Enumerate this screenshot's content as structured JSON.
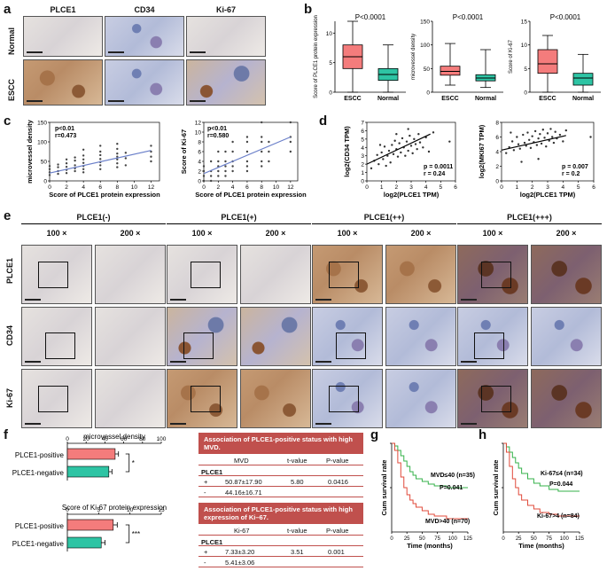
{
  "panels": {
    "a": "a",
    "b": "b",
    "c": "c",
    "d": "d",
    "e": "e",
    "f": "f",
    "g": "g",
    "h": "h"
  },
  "panel_a": {
    "columns": [
      "PLCE1",
      "CD34",
      "Ki-67"
    ],
    "rows": [
      "Normal",
      "ESCC"
    ]
  },
  "panel_e": {
    "groups": [
      "PLCE1(-)",
      "PLCE1(+)",
      "PLCE1(++)",
      "PLCE1(+++)"
    ],
    "magnifications": [
      "100 ×",
      "200 ×"
    ],
    "rows": [
      "PLCE1",
      "CD34",
      "Ki-67"
    ]
  },
  "chart_data": [
    {
      "id": "b1",
      "type": "box",
      "ylabel": "Score of PLCE1 protein expression",
      "categories": [
        "ESCC",
        "Normal"
      ],
      "annotation": "P<0.0001",
      "ylim": [
        0,
        12
      ],
      "yticks": [
        0,
        5,
        10
      ],
      "boxes": [
        {
          "name": "ESCC",
          "min": 0,
          "q1": 4,
          "median": 6,
          "q3": 8,
          "max": 12,
          "color": "#f47c7c"
        },
        {
          "name": "Normal",
          "min": 0,
          "q1": 2,
          "median": 3,
          "q3": 4,
          "max": 8,
          "color": "#2ec4a4"
        }
      ]
    },
    {
      "id": "b2",
      "type": "box",
      "ylabel": "microvessel density",
      "categories": [
        "ESCC",
        "Normal"
      ],
      "annotation": "P<0.0001",
      "ylim": [
        0,
        150
      ],
      "yticks": [
        0,
        50,
        100,
        150
      ],
      "boxes": [
        {
          "name": "ESCC",
          "min": 15,
          "q1": 36,
          "median": 44,
          "q3": 55,
          "max": 103,
          "color": "#f47c7c"
        },
        {
          "name": "Normal",
          "min": 10,
          "q1": 24,
          "median": 30,
          "q3": 37,
          "max": 90,
          "color": "#2ec4a4"
        }
      ]
    },
    {
      "id": "b3",
      "type": "box",
      "ylabel": "Score of Ki-67",
      "categories": [
        "ESCC",
        "Normal"
      ],
      "annotation": "P<0.0001",
      "ylim": [
        0,
        15
      ],
      "yticks": [
        0,
        5,
        10,
        15
      ],
      "boxes": [
        {
          "name": "ESCC",
          "min": 0,
          "q1": 4,
          "median": 6,
          "q3": 9,
          "max": 12,
          "color": "#f47c7c"
        },
        {
          "name": "Normal",
          "min": 0,
          "q1": 1.5,
          "median": 3,
          "q3": 4,
          "max": 8,
          "color": "#2ec4a4"
        }
      ]
    },
    {
      "id": "c1",
      "type": "scatter",
      "xlabel": "Score of PLCE1 protein expression",
      "ylabel": "microvessel density",
      "annotation": [
        "p<0.01",
        "r=0.473"
      ],
      "xlim": [
        0,
        13
      ],
      "ylim": [
        0,
        150
      ],
      "xticks": [
        0,
        2,
        4,
        6,
        8,
        10,
        12
      ],
      "yticks": [
        0,
        50,
        100,
        150
      ],
      "fit": {
        "x": [
          0,
          12
        ],
        "y": [
          20,
          78
        ]
      },
      "points": [
        [
          0,
          15
        ],
        [
          0,
          22
        ],
        [
          0,
          30
        ],
        [
          0,
          38
        ],
        [
          1,
          18
        ],
        [
          1,
          25
        ],
        [
          1,
          35
        ],
        [
          1,
          42
        ],
        [
          2,
          20
        ],
        [
          2,
          28
        ],
        [
          2,
          36
        ],
        [
          2,
          45
        ],
        [
          2,
          55
        ],
        [
          3,
          25
        ],
        [
          3,
          32
        ],
        [
          3,
          40
        ],
        [
          3,
          52
        ],
        [
          3,
          60
        ],
        [
          4,
          22
        ],
        [
          4,
          30
        ],
        [
          4,
          38
        ],
        [
          4,
          46
        ],
        [
          4,
          55
        ],
        [
          4,
          65
        ],
        [
          4,
          80
        ],
        [
          6,
          30
        ],
        [
          6,
          40
        ],
        [
          6,
          48
        ],
        [
          6,
          56
        ],
        [
          6,
          66
        ],
        [
          6,
          75
        ],
        [
          6,
          90
        ],
        [
          8,
          35
        ],
        [
          8,
          45
        ],
        [
          8,
          55
        ],
        [
          8,
          62
        ],
        [
          8,
          70
        ],
        [
          8,
          82
        ],
        [
          8,
          95
        ],
        [
          9,
          40
        ],
        [
          9,
          58
        ],
        [
          9,
          72
        ],
        [
          12,
          50
        ],
        [
          12,
          62
        ],
        [
          12,
          75
        ],
        [
          12,
          90
        ]
      ]
    },
    {
      "id": "c2",
      "type": "scatter",
      "xlabel": "Score of PLCE1 protein expression",
      "ylabel": "Score of Ki-67",
      "annotation": [
        "p<0.01",
        "r=0.580"
      ],
      "xlim": [
        0,
        13
      ],
      "ylim": [
        0,
        12
      ],
      "xticks": [
        0,
        2,
        4,
        6,
        8,
        10,
        12
      ],
      "yticks": [
        0,
        2,
        4,
        6,
        8,
        10,
        12
      ],
      "fit": {
        "x": [
          0,
          12
        ],
        "y": [
          1.5,
          9
        ]
      },
      "points": [
        [
          0,
          0
        ],
        [
          0,
          1
        ],
        [
          0,
          2
        ],
        [
          0,
          3
        ],
        [
          1,
          0
        ],
        [
          1,
          1
        ],
        [
          1,
          2
        ],
        [
          1,
          4
        ],
        [
          2,
          1
        ],
        [
          2,
          2
        ],
        [
          2,
          3
        ],
        [
          2,
          4
        ],
        [
          2,
          6
        ],
        [
          3,
          1
        ],
        [
          3,
          2
        ],
        [
          3,
          3
        ],
        [
          3,
          4
        ],
        [
          3,
          6
        ],
        [
          4,
          2
        ],
        [
          4,
          3
        ],
        [
          4,
          4
        ],
        [
          4,
          6
        ],
        [
          4,
          8
        ],
        [
          6,
          2
        ],
        [
          6,
          3
        ],
        [
          6,
          4
        ],
        [
          6,
          6
        ],
        [
          6,
          8
        ],
        [
          6,
          9
        ],
        [
          8,
          3
        ],
        [
          8,
          4
        ],
        [
          8,
          6
        ],
        [
          8,
          8
        ],
        [
          8,
          9
        ],
        [
          8,
          12
        ],
        [
          9,
          4
        ],
        [
          9,
          6
        ],
        [
          9,
          8
        ],
        [
          12,
          6
        ],
        [
          12,
          8
        ],
        [
          12,
          9
        ],
        [
          12,
          12
        ]
      ]
    },
    {
      "id": "d1",
      "type": "scatter",
      "xlabel": "log2(PLCE1 TPM)",
      "ylabel": "log2(CD34 TPM)",
      "annotation": [
        "p = 0.0011",
        "r = 0.24"
      ],
      "xlim": [
        0,
        6
      ],
      "ylim": [
        0,
        7
      ],
      "xticks": [
        0,
        1,
        2,
        3,
        4,
        5,
        6
      ],
      "yticks": [
        0,
        1,
        2,
        3,
        4,
        5,
        6,
        7
      ],
      "fit": {
        "x": [
          0,
          4.3
        ],
        "y": [
          2,
          5.6
        ]
      },
      "points": [
        [
          0.3,
          1.5
        ],
        [
          0.5,
          2.4
        ],
        [
          0.7,
          3.1
        ],
        [
          0.8,
          2.0
        ],
        [
          1.0,
          3.4
        ],
        [
          1.1,
          2.6
        ],
        [
          1.2,
          4.1
        ],
        [
          1.4,
          3.0
        ],
        [
          1.5,
          3.6
        ],
        [
          1.6,
          2.2
        ],
        [
          1.7,
          4.3
        ],
        [
          1.8,
          3.2
        ],
        [
          1.9,
          4.8
        ],
        [
          2.0,
          3.8
        ],
        [
          2.1,
          2.9
        ],
        [
          2.2,
          4.5
        ],
        [
          2.3,
          3.4
        ],
        [
          2.4,
          5.1
        ],
        [
          2.5,
          4.0
        ],
        [
          2.6,
          3.0
        ],
        [
          2.7,
          4.7
        ],
        [
          2.8,
          3.6
        ],
        [
          2.9,
          5.4
        ],
        [
          3.0,
          4.2
        ],
        [
          3.1,
          3.3
        ],
        [
          3.2,
          5.0
        ],
        [
          3.3,
          4.4
        ],
        [
          3.4,
          3.8
        ],
        [
          3.5,
          5.6
        ],
        [
          3.6,
          4.6
        ],
        [
          3.8,
          4.0
        ],
        [
          4.0,
          5.2
        ],
        [
          4.2,
          3.5
        ],
        [
          4.5,
          5.8
        ],
        [
          5.6,
          4.7
        ],
        [
          1.3,
          1.8
        ],
        [
          2.0,
          5.6
        ],
        [
          2.8,
          6.2
        ],
        [
          0.9,
          4.3
        ]
      ]
    },
    {
      "id": "d2",
      "type": "scatter",
      "xlabel": "log2(PLCE1 TPM)",
      "ylabel": "log2(MKI67 TPM)",
      "annotation": [
        "p = 0.007",
        "r = 0.2"
      ],
      "xlim": [
        0,
        6
      ],
      "ylim": [
        0,
        8
      ],
      "xticks": [
        0,
        1,
        2,
        3,
        4,
        5,
        6
      ],
      "yticks": [
        0,
        2,
        4,
        6,
        8
      ],
      "fit": {
        "x": [
          0,
          4.2
        ],
        "y": [
          4.2,
          6.2
        ]
      },
      "points": [
        [
          0.3,
          3.8
        ],
        [
          0.5,
          4.6
        ],
        [
          0.7,
          5.4
        ],
        [
          0.8,
          4.2
        ],
        [
          1.0,
          6.0
        ],
        [
          1.1,
          5.0
        ],
        [
          1.2,
          4.4
        ],
        [
          1.4,
          6.3
        ],
        [
          1.5,
          5.2
        ],
        [
          1.6,
          4.8
        ],
        [
          1.7,
          6.6
        ],
        [
          1.8,
          5.6
        ],
        [
          1.9,
          4.5
        ],
        [
          2.0,
          6.1
        ],
        [
          2.1,
          5.3
        ],
        [
          2.2,
          6.8
        ],
        [
          2.3,
          4.9
        ],
        [
          2.4,
          5.8
        ],
        [
          2.5,
          6.4
        ],
        [
          2.6,
          5.1
        ],
        [
          2.7,
          7.0
        ],
        [
          2.8,
          5.9
        ],
        [
          2.9,
          4.7
        ],
        [
          3.0,
          6.5
        ],
        [
          3.1,
          5.5
        ],
        [
          3.2,
          7.1
        ],
        [
          3.3,
          6.0
        ],
        [
          3.4,
          5.2
        ],
        [
          3.5,
          6.7
        ],
        [
          3.6,
          5.8
        ],
        [
          3.8,
          6.3
        ],
        [
          4.0,
          5.4
        ],
        [
          4.2,
          6.9
        ],
        [
          5.8,
          6.0
        ],
        [
          1.3,
          2.6
        ],
        [
          2.4,
          3.0
        ],
        [
          0.6,
          6.6
        ]
      ]
    },
    {
      "id": "f1",
      "type": "bar",
      "orientation": "horizontal",
      "title": "microvessel density",
      "categories": [
        "PLCE1-positive",
        "PLCE1-negative"
      ],
      "values": [
        50.87,
        44.16
      ],
      "errors": [
        17.9,
        16.71
      ],
      "colors": [
        "#f47c7c",
        "#2ec4a4"
      ],
      "xlim": [
        0,
        100
      ],
      "xticks": [
        0,
        20,
        40,
        60,
        80,
        100
      ],
      "significance": "*"
    },
    {
      "id": "f2",
      "type": "bar",
      "orientation": "horizontal",
      "title": "Score of Ki-67 protein expression",
      "categories": [
        "PLCE1-positive",
        "PLCE1-negative"
      ],
      "values": [
        7.33,
        5.41
      ],
      "errors": [
        3.2,
        3.06
      ],
      "colors": [
        "#f47c7c",
        "#2ec4a4"
      ],
      "xlim": [
        0,
        15
      ],
      "xticks": [
        0,
        5,
        10,
        15
      ],
      "significance": "***"
    },
    {
      "id": "g",
      "type": "line",
      "xlabel": "Time (months)",
      "ylabel": "Cum survival rate",
      "xlim": [
        0,
        125
      ],
      "ylim": [
        0,
        1.0
      ],
      "xticks": [
        0,
        25,
        50,
        75,
        100,
        125
      ],
      "yticks": [
        0.0,
        0.2,
        0.4,
        0.6,
        0.8,
        1.0
      ],
      "annotation": "P=0.041",
      "series": [
        {
          "name": "MVD≤40 (n=35)",
          "color": "#34b24a",
          "x": [
            0,
            5,
            10,
            15,
            20,
            25,
            30,
            35,
            40,
            50,
            60,
            70,
            90,
            110,
            125
          ],
          "y": [
            1.0,
            0.97,
            0.92,
            0.86,
            0.8,
            0.74,
            0.68,
            0.64,
            0.6,
            0.57,
            0.54,
            0.52,
            0.5,
            0.5,
            0.5
          ]
        },
        {
          "name": "MVD>40 (n=70)",
          "color": "#e04a3a",
          "x": [
            0,
            5,
            10,
            15,
            20,
            25,
            30,
            35,
            40,
            50,
            60,
            70,
            90,
            110,
            125
          ],
          "y": [
            1.0,
            0.92,
            0.78,
            0.62,
            0.5,
            0.42,
            0.36,
            0.32,
            0.28,
            0.24,
            0.2,
            0.18,
            0.15,
            0.15,
            0.15
          ]
        }
      ]
    },
    {
      "id": "h",
      "type": "line",
      "xlabel": "Time (months)",
      "ylabel": "Cum survival rate",
      "xlim": [
        0,
        125
      ],
      "ylim": [
        0,
        1.0
      ],
      "xticks": [
        0,
        25,
        50,
        75,
        100,
        125
      ],
      "yticks": [
        0.0,
        0.2,
        0.4,
        0.6,
        0.8,
        1.0
      ],
      "annotation": "P=0.044",
      "series": [
        {
          "name": "Ki-67≤4 (n=34)",
          "color": "#34b24a",
          "x": [
            0,
            5,
            10,
            15,
            20,
            25,
            30,
            40,
            50,
            60,
            75,
            90,
            110,
            125
          ],
          "y": [
            1.0,
            0.96,
            0.9,
            0.84,
            0.78,
            0.72,
            0.66,
            0.6,
            0.55,
            0.52,
            0.48,
            0.46,
            0.46,
            0.46
          ]
        },
        {
          "name": "Ki-67>4 (n=84)",
          "color": "#e04a3a",
          "x": [
            0,
            5,
            10,
            15,
            20,
            25,
            30,
            40,
            50,
            60,
            75,
            90,
            110,
            125
          ],
          "y": [
            1.0,
            0.9,
            0.74,
            0.6,
            0.5,
            0.42,
            0.36,
            0.3,
            0.26,
            0.22,
            0.2,
            0.18,
            0.18,
            0.18
          ]
        }
      ]
    }
  ],
  "table1": {
    "title": "Association of PLCE1-positive status with high MVD.",
    "headers": [
      "",
      "MVD",
      "t-value",
      "P-value"
    ],
    "group": "PLCE1",
    "rows": [
      [
        "+",
        "50.87±17.90",
        "5.80",
        "0.0416"
      ],
      [
        "-",
        "44.16±16.71",
        "",
        ""
      ]
    ]
  },
  "table2": {
    "title": "Association of PLCE1-positive status with high expression of Ki–67.",
    "headers": [
      "",
      "Ki-67",
      "t-value",
      "P-value"
    ],
    "group": "PLCE1",
    "rows": [
      [
        "+",
        "7.33±3.20",
        "3.51",
        "0.001"
      ],
      [
        "-",
        "5.41±3.06",
        "",
        ""
      ]
    ]
  }
}
